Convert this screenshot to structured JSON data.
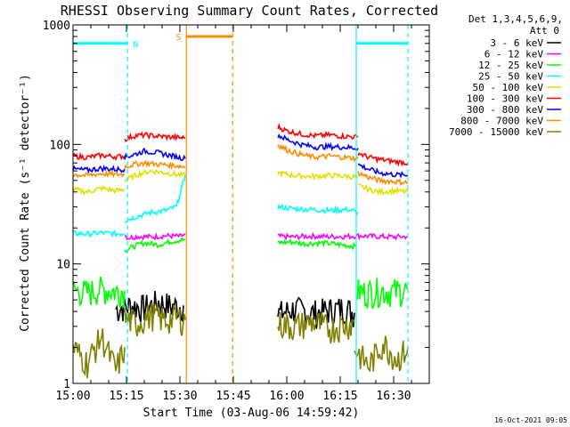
{
  "chart_data": {
    "type": "line",
    "title": "RHESSI Observing Summary Count Rates, Corrected",
    "xlabel": "Start Time (03-Aug-06 14:59:42)",
    "ylabel": "Corrected Count Rate (s⁻¹ detector⁻¹)",
    "x_unit": "minutes after 15:00",
    "xlim": [
      0,
      100
    ],
    "ylim": [
      1,
      1000
    ],
    "yscale": "log",
    "x_ticks": [
      {
        "label": "15:00",
        "x": 0
      },
      {
        "label": "15:15",
        "x": 15
      },
      {
        "label": "15:30",
        "x": 30
      },
      {
        "label": "15:45",
        "x": 45
      },
      {
        "label": "16:00",
        "x": 60
      },
      {
        "label": "16:15",
        "x": 75
      },
      {
        "label": "16:30",
        "x": 90
      }
    ],
    "y_ticks": [
      {
        "label": "1",
        "y": 1
      },
      {
        "label": "10",
        "y": 10
      },
      {
        "label": "100",
        "y": 100
      },
      {
        "label": "1000",
        "y": 1000
      }
    ],
    "detector_label": "Det 1,3,4,5,6,9,",
    "attenuator_label": "Att 0",
    "legend_position": "right",
    "series": [
      {
        "name": "3 - 6 keV",
        "color": "#000000",
        "segments": [
          {
            "x": [
              12,
              16,
              20,
              24,
              28,
              31
            ],
            "y": [
              4.2,
              4.5,
              4.3,
              4.8,
              4.4,
              4.5
            ]
          },
          {
            "x": [
              57.5,
              62,
              67,
              72,
              76,
              79
            ],
            "y": [
              3.8,
              4.2,
              3.9,
              4.1,
              4.3,
              3.9
            ]
          }
        ]
      },
      {
        "name": "6 - 12 keV",
        "color": "#ff00ff",
        "segments": [
          {
            "x": [
              14.5,
              15.5,
              18,
              22,
              26,
              30,
              31.5
            ],
            "y": [
              17.5,
              16.5,
              17,
              16.8,
              17.2,
              17,
              17.5
            ]
          },
          {
            "x": [
              57.5,
              62,
              67,
              72,
              77,
              80,
              85,
              90,
              94
            ],
            "y": [
              17,
              16.8,
              17.1,
              16.9,
              17,
              17.2,
              17,
              16.8,
              17
            ]
          }
        ]
      },
      {
        "name": "12 - 25 keV",
        "color": "#00ff00",
        "segments": [
          {
            "x": [
              0,
              4,
              8,
              12,
              14.5
            ],
            "y": [
              6,
              5.8,
              6.2,
              5.9,
              6
            ]
          },
          {
            "x": [
              14.5,
              17,
              20,
              24,
              28,
              31.5
            ],
            "y": [
              13,
              14,
              15,
              14.5,
              15.5,
              16
            ]
          },
          {
            "x": [
              57.5,
              61,
              65,
              70,
              75,
              79.5
            ],
            "y": [
              15,
              15.3,
              14.8,
              15,
              14.5,
              14
            ]
          },
          {
            "x": [
              79.5,
              82,
              86,
              90,
              94
            ],
            "y": [
              6,
              5.8,
              6,
              5.9,
              6.1
            ]
          }
        ]
      },
      {
        "name": "25 - 50 keV",
        "color": "#00ffff",
        "segments": [
          {
            "x": [
              0,
              4,
              8,
              12,
              14.5
            ],
            "y": [
              18,
              17.8,
              18.2,
              17.9,
              18
            ]
          },
          {
            "x": [
              14.5,
              18,
              22,
              26,
              29,
              31.5
            ],
            "y": [
              23,
              25,
              27,
              28,
              30,
              55
            ]
          },
          {
            "x": [
              57.5,
              62,
              67,
              72,
              77,
              80
            ],
            "y": [
              30,
              29,
              28.5,
              28,
              28.5,
              27
            ]
          }
        ]
      },
      {
        "name": "50 - 100 keV",
        "color": "#e0e000",
        "segments": [
          {
            "x": [
              0,
              4,
              8,
              12,
              14.5
            ],
            "y": [
              42,
              40,
              43,
              41,
              42
            ]
          },
          {
            "x": [
              14.5,
              18,
              22,
              26,
              29,
              31.5
            ],
            "y": [
              50,
              56,
              60,
              58,
              56,
              55
            ]
          },
          {
            "x": [
              57.5,
              62,
              67,
              72,
              77,
              80
            ],
            "y": [
              58,
              55,
              54,
              55,
              54,
              53
            ]
          },
          {
            "x": [
              80,
              83,
              86,
              90,
              94
            ],
            "y": [
              45,
              42,
              40,
              41,
              40
            ]
          }
        ]
      },
      {
        "name": "100 - 300 keV",
        "color": "#ff0000",
        "segments": [
          {
            "x": [
              0,
              4,
              8,
              12,
              14.5
            ],
            "y": [
              80,
              78,
              81,
              79,
              80
            ]
          },
          {
            "x": [
              14.5,
              17,
              20,
              24,
              28,
              31.5
            ],
            "y": [
              110,
              118,
              120,
              117,
              115,
              113
            ]
          },
          {
            "x": [
              57.5,
              60,
              64,
              68,
              72,
              76,
              80
            ],
            "y": [
              140,
              130,
              122,
              118,
              120,
              117,
              115
            ]
          },
          {
            "x": [
              80,
              83,
              86,
              90,
              94
            ],
            "y": [
              85,
              78,
              75,
              72,
              70
            ]
          }
        ]
      },
      {
        "name": "300 - 800 keV",
        "color": "#0000ff",
        "segments": [
          {
            "x": [
              0,
              4,
              8,
              12,
              14.5
            ],
            "y": [
              62,
              61,
              63,
              62,
              62
            ]
          },
          {
            "x": [
              14.5,
              17,
              20,
              24,
              28,
              31.5
            ],
            "y": [
              78,
              82,
              88,
              85,
              80,
              76
            ]
          },
          {
            "x": [
              57.5,
              60,
              64,
              68,
              72,
              76,
              80
            ],
            "y": [
              120,
              110,
              100,
              95,
              96,
              95,
              93
            ]
          },
          {
            "x": [
              80,
              83,
              86,
              90,
              94
            ],
            "y": [
              68,
              62,
              58,
              56,
              55
            ]
          }
        ]
      },
      {
        "name": "800 - 7000 keV",
        "color": "#ff8c00",
        "segments": [
          {
            "x": [
              0,
              4,
              8,
              12,
              14.5
            ],
            "y": [
              56,
              55,
              57,
              56,
              56
            ]
          },
          {
            "x": [
              14.5,
              17,
              20,
              24,
              28,
              31.5
            ],
            "y": [
              65,
              68,
              70,
              68,
              67,
              65
            ]
          },
          {
            "x": [
              57.5,
              60,
              64,
              68,
              72,
              76,
              80
            ],
            "y": [
              100,
              90,
              82,
              78,
              80,
              78,
              76
            ]
          },
          {
            "x": [
              80,
              83,
              86,
              90,
              94
            ],
            "y": [
              58,
              53,
              50,
              49,
              48
            ]
          }
        ]
      },
      {
        "name": "7000 - 15000 keV",
        "color": "#808000",
        "segments": [
          {
            "x": [
              0,
              4,
              8,
              12,
              14.5
            ],
            "y": [
              2,
              1.5,
              2.5,
              1.3,
              2
            ]
          },
          {
            "x": [
              14.5,
              18,
              22,
              26,
              29,
              31.5
            ],
            "y": [
              3.5,
              3.2,
              3.8,
              3.4,
              3.6,
              3.4
            ]
          },
          {
            "x": [
              57.5,
              62,
              67,
              72,
              76,
              79
            ],
            "y": [
              3.2,
              3,
              3.3,
              2.9,
              3.1,
              3.2
            ]
          },
          {
            "x": [
              79,
              83,
              87,
              91,
              94
            ],
            "y": [
              2,
              1.4,
              2.2,
              1.6,
              2
            ]
          }
        ]
      }
    ],
    "flags": [
      {
        "label": "N",
        "color": "#00ffff",
        "marker_y": 700,
        "bars": [
          {
            "x_start": 0,
            "x_end": 15.3
          },
          {
            "x_start": 79.5,
            "x_end": 94
          }
        ],
        "solid_lines": [
          79.5
        ],
        "dashed_lines": [
          15.3,
          94
        ]
      },
      {
        "label": "S",
        "color": "#ff8c00",
        "marker_y": 800,
        "bars": [
          {
            "x_start": 31.8,
            "x_end": 44.8
          }
        ],
        "solid_lines": [
          31.8
        ],
        "dashed_lines": [
          44.8
        ]
      }
    ],
    "footer_timestamp": "16-Oct-2021 09:05"
  }
}
